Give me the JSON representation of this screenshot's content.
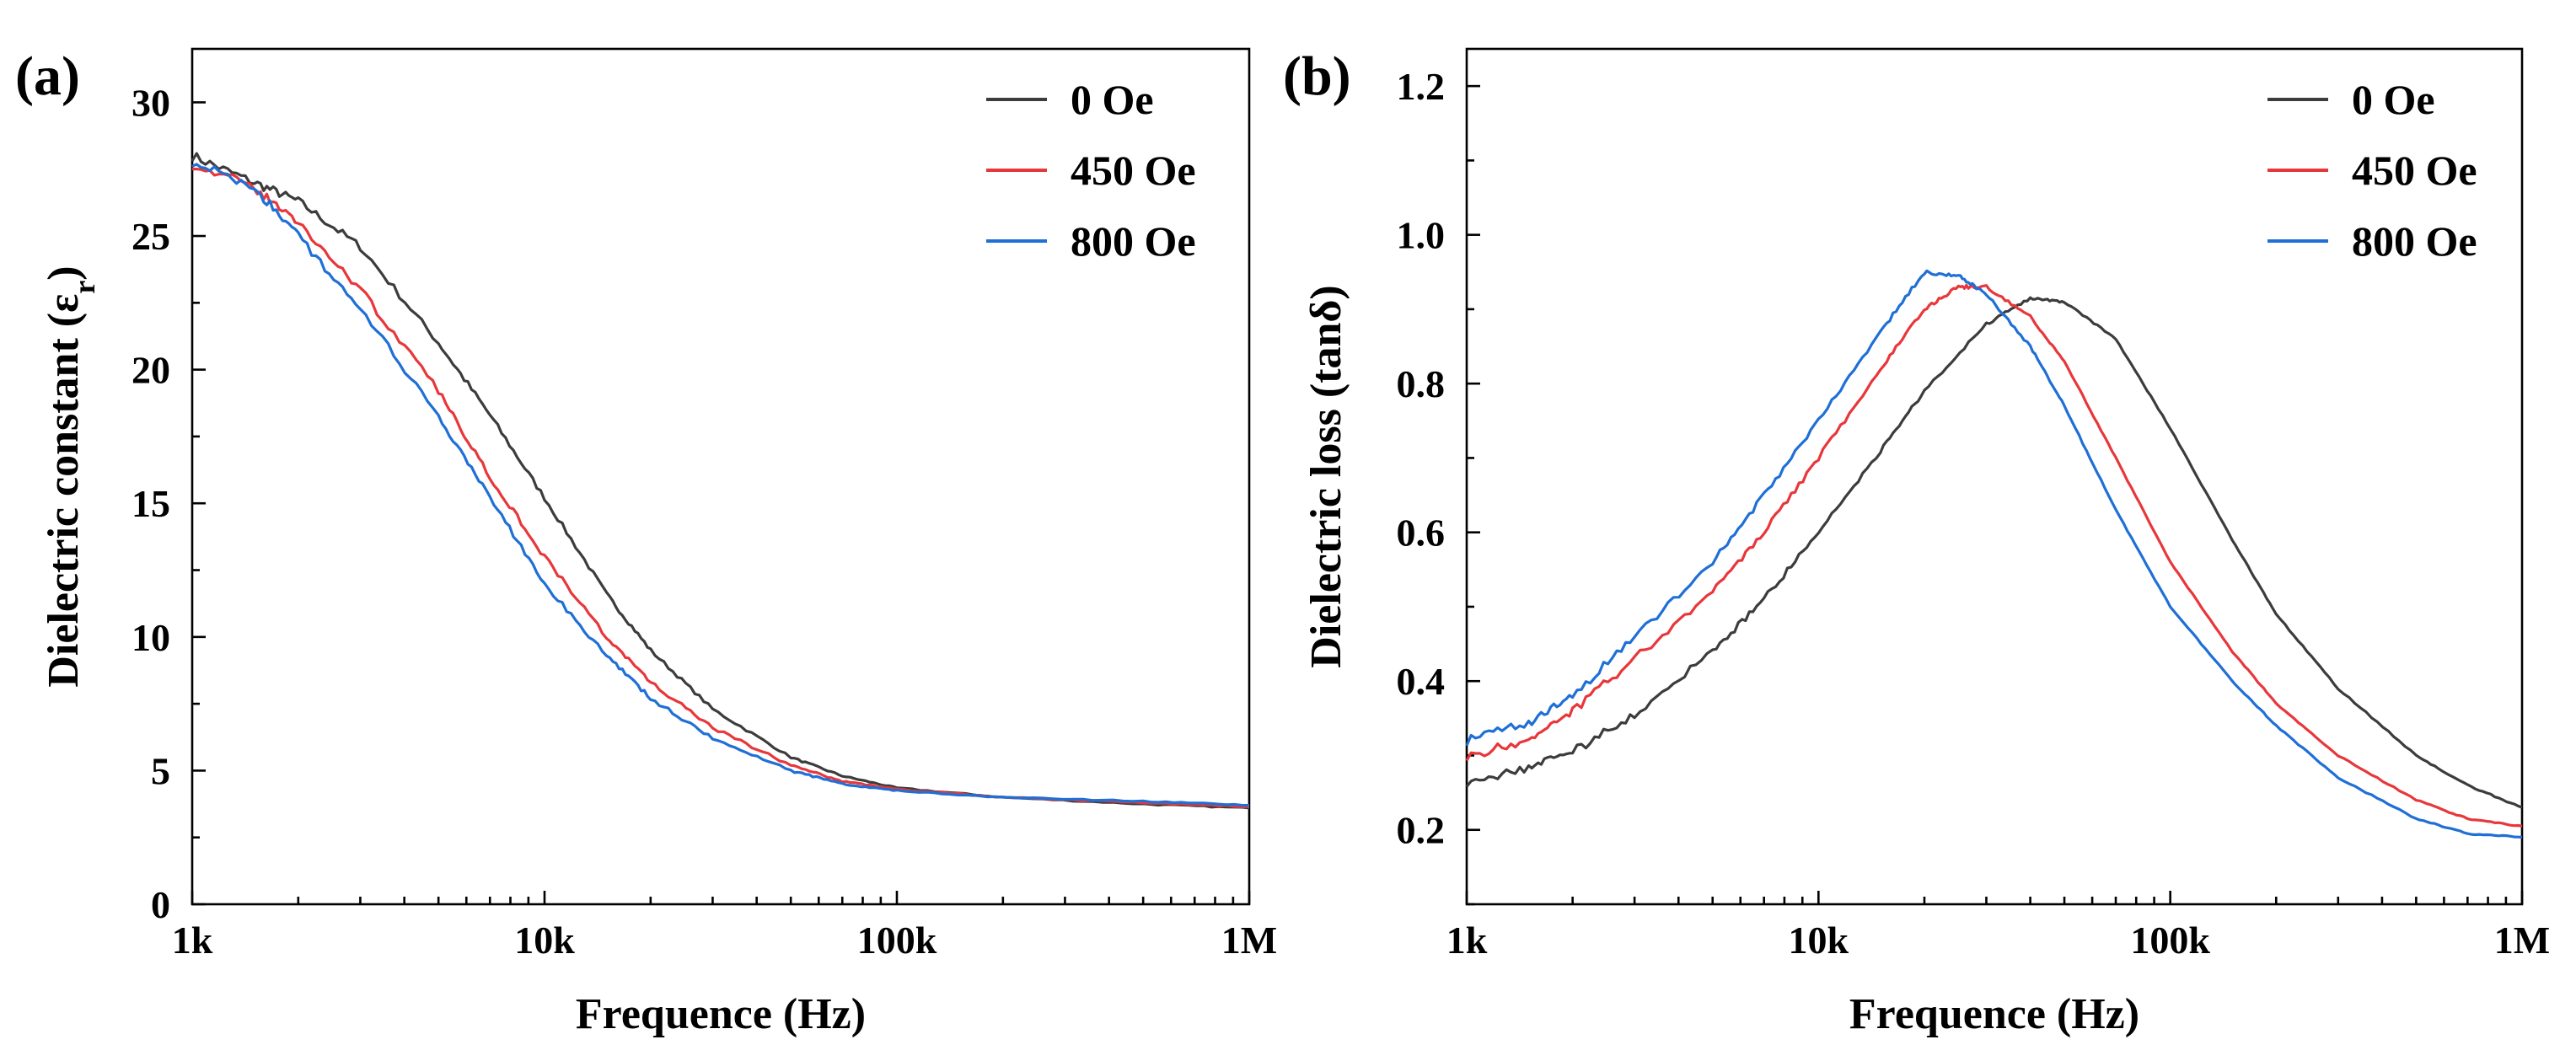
{
  "chart_data": [
    {
      "type": "line",
      "panel_label": "(a)",
      "xlabel": "Frequence (Hz)",
      "ylabel": "Dielectric constant (ε",
      "ylabel_sub": "r",
      "ylabel_close": ")",
      "xscale": "log",
      "xlim": [
        1000,
        1000000
      ],
      "ylim": [
        0,
        32
      ],
      "xticks": [
        {
          "value": 1000,
          "label": "1k"
        },
        {
          "value": 10000,
          "label": "10k"
        },
        {
          "value": 100000,
          "label": "100k"
        },
        {
          "value": 1000000,
          "label": "1M"
        }
      ],
      "yticks": [
        {
          "value": 0,
          "label": "0"
        },
        {
          "value": 5,
          "label": "5"
        },
        {
          "value": 10,
          "label": "10"
        },
        {
          "value": 15,
          "label": "15"
        },
        {
          "value": 20,
          "label": "20"
        },
        {
          "value": 25,
          "label": "25"
        },
        {
          "value": 30,
          "label": "30"
        }
      ],
      "y_minor_step": 2.5,
      "legend_position": "top-right",
      "series": [
        {
          "name": "0 Oe",
          "color": "#3c3c3c",
          "x": [
            1000,
            1500,
            2000,
            3000,
            5000,
            7000,
            10000,
            15000,
            20000,
            30000,
            50000,
            70000,
            100000,
            200000,
            500000,
            1000000
          ],
          "y": [
            28.0,
            27.0,
            26.3,
            24.6,
            21.0,
            18.3,
            15.2,
            11.6,
            9.5,
            7.3,
            5.5,
            4.8,
            4.35,
            4.0,
            3.75,
            3.6
          ]
        },
        {
          "name": "450 Oe",
          "color": "#e8373b",
          "x": [
            1000,
            1500,
            2000,
            3000,
            5000,
            7000,
            10000,
            15000,
            20000,
            30000,
            50000,
            70000,
            100000,
            200000,
            500000,
            1000000
          ],
          "y": [
            27.7,
            26.8,
            25.5,
            23.0,
            19.2,
            16.0,
            13.0,
            10.0,
            8.3,
            6.6,
            5.2,
            4.6,
            4.3,
            4.0,
            3.8,
            3.65
          ]
        },
        {
          "name": "800 Oe",
          "color": "#1f6fd6",
          "x": [
            1000,
            1500,
            2000,
            3000,
            5000,
            7000,
            10000,
            15000,
            20000,
            30000,
            50000,
            70000,
            100000,
            200000,
            500000,
            1000000
          ],
          "y": [
            27.8,
            26.8,
            25.0,
            22.3,
            18.2,
            15.2,
            12.0,
            9.3,
            7.7,
            6.2,
            5.0,
            4.5,
            4.25,
            4.0,
            3.85,
            3.7
          ]
        }
      ]
    },
    {
      "type": "line",
      "panel_label": "(b)",
      "xlabel": "Frequence (Hz)",
      "ylabel": "Dielectric loss (tanδ)",
      "ylabel_sub": "",
      "ylabel_close": "",
      "xscale": "log",
      "xlim": [
        1000,
        1000000
      ],
      "ylim": [
        0.1,
        1.25
      ],
      "xticks": [
        {
          "value": 1000,
          "label": "1k"
        },
        {
          "value": 10000,
          "label": "10k"
        },
        {
          "value": 100000,
          "label": "100k"
        },
        {
          "value": 1000000,
          "label": "1M"
        }
      ],
      "yticks": [
        {
          "value": 0.2,
          "label": "0.2"
        },
        {
          "value": 0.4,
          "label": "0.4"
        },
        {
          "value": 0.6,
          "label": "0.6"
        },
        {
          "value": 0.8,
          "label": "0.8"
        },
        {
          "value": 1.0,
          "label": "1.0"
        },
        {
          "value": 1.2,
          "label": "1.2"
        }
      ],
      "y_minor_step": 0.1,
      "legend_position": "top-right",
      "series": [
        {
          "name": "0 Oe",
          "color": "#3c3c3c",
          "x": [
            1000,
            1500,
            2000,
            3000,
            5000,
            7000,
            10000,
            15000,
            20000,
            30000,
            40000,
            50000,
            70000,
            100000,
            150000,
            200000,
            300000,
            500000,
            700000,
            1000000
          ],
          "y": [
            0.265,
            0.285,
            0.305,
            0.355,
            0.44,
            0.51,
            0.6,
            0.71,
            0.79,
            0.88,
            0.915,
            0.91,
            0.86,
            0.74,
            0.59,
            0.49,
            0.39,
            0.3,
            0.26,
            0.23
          ]
        },
        {
          "name": "450 Oe",
          "color": "#e8373b",
          "x": [
            1000,
            1500,
            2000,
            3000,
            5000,
            7000,
            10000,
            15000,
            20000,
            25000,
            30000,
            40000,
            50000,
            70000,
            100000,
            150000,
            200000,
            300000,
            500000,
            700000,
            1000000
          ],
          "y": [
            0.3,
            0.32,
            0.36,
            0.43,
            0.52,
            0.6,
            0.7,
            0.82,
            0.9,
            0.93,
            0.93,
            0.89,
            0.83,
            0.7,
            0.56,
            0.44,
            0.37,
            0.3,
            0.24,
            0.215,
            0.205
          ]
        },
        {
          "name": "800 Oe",
          "color": "#1f6fd6",
          "x": [
            1000,
            1500,
            2000,
            3000,
            5000,
            7000,
            10000,
            15000,
            20000,
            25000,
            30000,
            40000,
            50000,
            70000,
            100000,
            150000,
            200000,
            300000,
            500000,
            700000,
            1000000
          ],
          "y": [
            0.32,
            0.345,
            0.38,
            0.46,
            0.56,
            0.65,
            0.75,
            0.87,
            0.95,
            0.945,
            0.92,
            0.85,
            0.77,
            0.63,
            0.5,
            0.4,
            0.34,
            0.27,
            0.215,
            0.195,
            0.19
          ]
        }
      ]
    }
  ]
}
